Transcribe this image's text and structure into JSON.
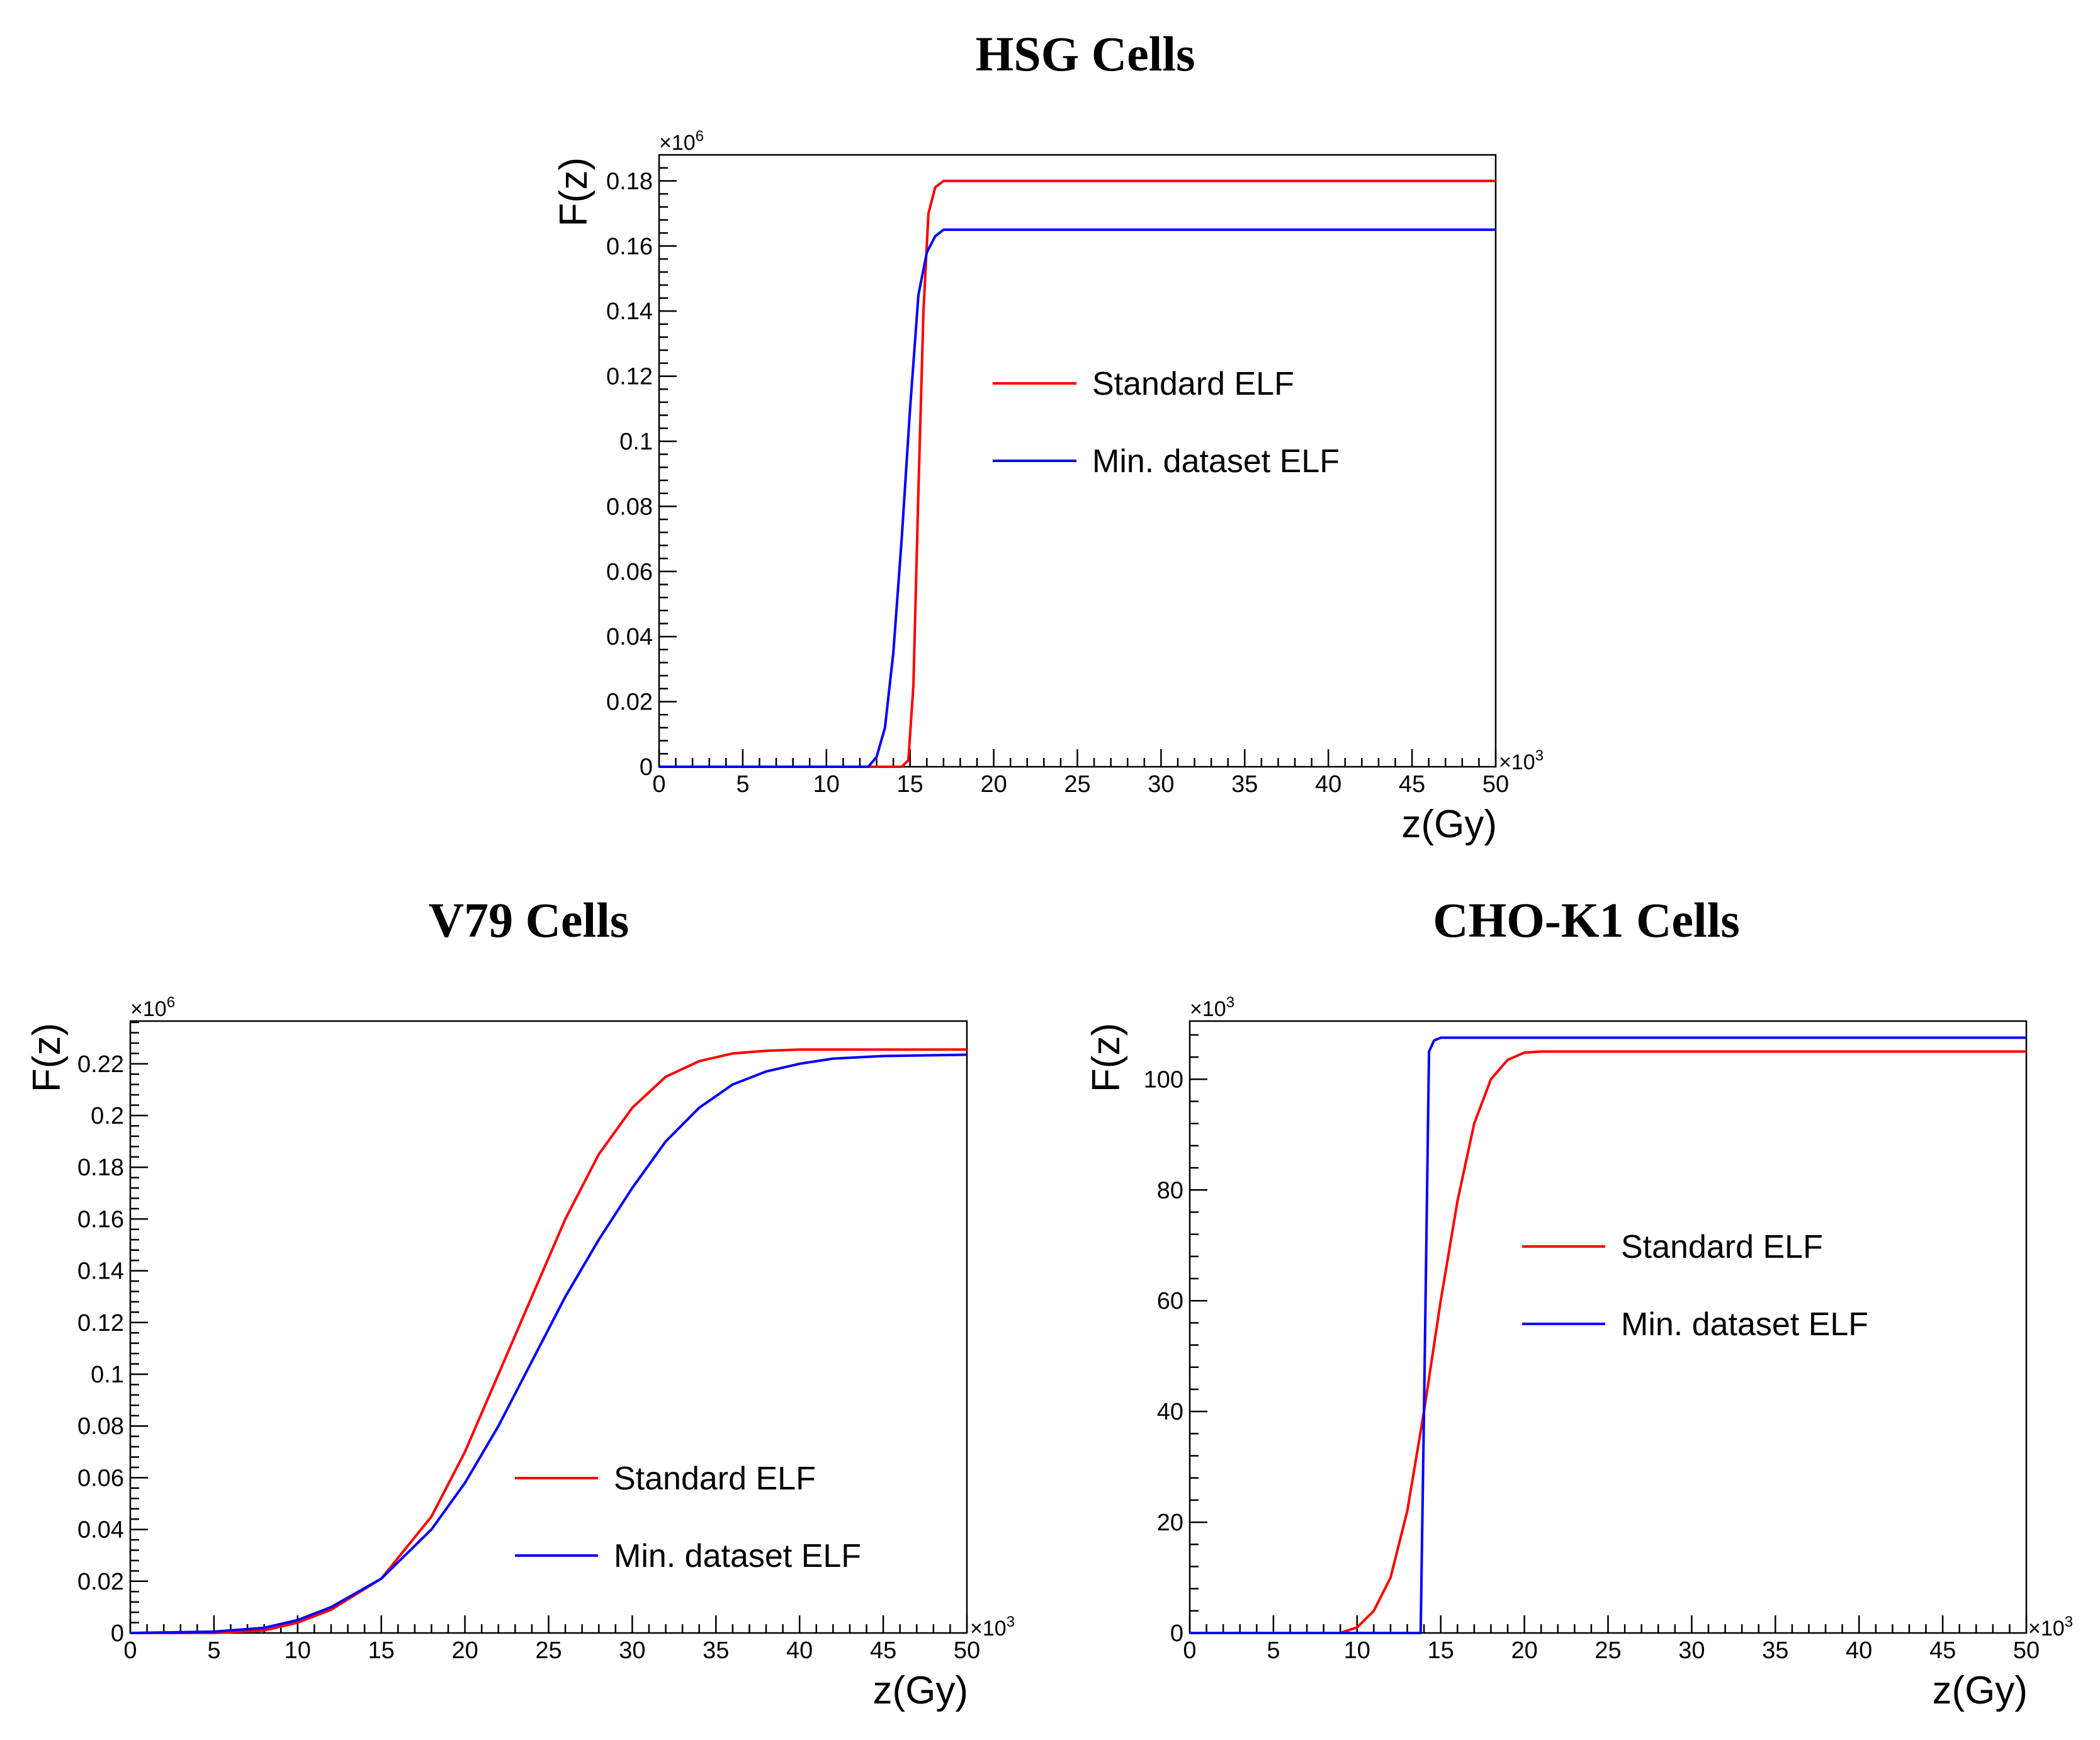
{
  "chart_data": [
    {
      "type": "line",
      "title": "HSG Cells",
      "xlabel": "z(Gy)",
      "ylabel": "F(z)",
      "x_multiplier": "×10",
      "x_multiplier_exp": "3",
      "y_multiplier": "×10",
      "y_multiplier_exp": "6",
      "xlim": [
        0,
        50
      ],
      "ylim": [
        0,
        0.188
      ],
      "x_ticks": [
        0,
        5,
        10,
        15,
        20,
        25,
        30,
        35,
        40,
        45,
        50
      ],
      "x_tick_labels": [
        "0",
        "5",
        "10",
        "15",
        "20",
        "25",
        "30",
        "35",
        "40",
        "45",
        "50"
      ],
      "y_ticks": [
        0,
        0.02,
        0.04,
        0.06,
        0.08,
        0.1,
        0.12,
        0.14,
        0.16,
        0.18
      ],
      "y_tick_labels": [
        "0",
        "0.02",
        "0.04",
        "0.06",
        "0.08",
        "0.1",
        "0.12",
        "0.14",
        "0.16",
        "0.18"
      ],
      "legend": [
        "Standard ELF",
        "Min. dataset ELF"
      ],
      "legend_position": "center-right",
      "series": [
        {
          "name": "Standard ELF",
          "color": "#ff0000",
          "x": [
            0,
            14.5,
            14.9,
            15.2,
            15.5,
            15.8,
            16.1,
            16.5,
            17,
            50
          ],
          "y": [
            0,
            0,
            0.002,
            0.025,
            0.085,
            0.14,
            0.17,
            0.178,
            0.18,
            0.18
          ]
        },
        {
          "name": "Min. dataset ELF",
          "color": "#0000ff",
          "x": [
            0,
            12.5,
            13,
            13.5,
            14,
            14.5,
            15,
            15.5,
            16,
            16.5,
            17,
            18,
            50
          ],
          "y": [
            0,
            0,
            0.003,
            0.012,
            0.035,
            0.07,
            0.11,
            0.145,
            0.158,
            0.163,
            0.165,
            0.165,
            0.165
          ]
        }
      ]
    },
    {
      "type": "line",
      "title": "V79 Cells",
      "xlabel": "z(Gy)",
      "ylabel": "F(z)",
      "x_multiplier": "×10",
      "x_multiplier_exp": "3",
      "y_multiplier": "×10",
      "y_multiplier_exp": "6",
      "xlim": [
        0,
        50
      ],
      "ylim": [
        0,
        0.2365
      ],
      "x_ticks": [
        0,
        5,
        10,
        15,
        20,
        25,
        30,
        35,
        40,
        45,
        50
      ],
      "x_tick_labels": [
        "0",
        "5",
        "10",
        "15",
        "20",
        "25",
        "30",
        "35",
        "40",
        "45",
        "50"
      ],
      "y_ticks": [
        0,
        0.02,
        0.04,
        0.06,
        0.08,
        0.1,
        0.12,
        0.14,
        0.16,
        0.18,
        0.2,
        0.22
      ],
      "y_tick_labels": [
        "0",
        "0.02",
        "0.04",
        "0.06",
        "0.08",
        "0.1",
        "0.12",
        "0.14",
        "0.16",
        "0.18",
        "0.2",
        "0.22"
      ],
      "legend": [
        "Standard ELF",
        "Min. dataset ELF"
      ],
      "legend_position": "bottom-right",
      "series": [
        {
          "name": "Standard ELF",
          "color": "#ff0000",
          "x": [
            0,
            5,
            8,
            10,
            12,
            15,
            18,
            20,
            22,
            24,
            26,
            28,
            30,
            32,
            34,
            36,
            38,
            40,
            50
          ],
          "y": [
            0,
            0,
            0.001,
            0.004,
            0.009,
            0.021,
            0.045,
            0.07,
            0.1,
            0.13,
            0.16,
            0.185,
            0.203,
            0.215,
            0.221,
            0.224,
            0.225,
            0.2255,
            0.2255
          ]
        },
        {
          "name": "Min. dataset ELF",
          "color": "#0000ff",
          "x": [
            0,
            5,
            8,
            10,
            12,
            15,
            18,
            20,
            22,
            24,
            26,
            28,
            30,
            32,
            34,
            36,
            38,
            40,
            42,
            45,
            50
          ],
          "y": [
            0,
            0.0005,
            0.002,
            0.005,
            0.01,
            0.021,
            0.04,
            0.058,
            0.08,
            0.105,
            0.13,
            0.152,
            0.172,
            0.19,
            0.203,
            0.212,
            0.217,
            0.22,
            0.222,
            0.223,
            0.2235
          ]
        }
      ]
    },
    {
      "type": "line",
      "title": "CHO-K1 Cells",
      "xlabel": "z(Gy)",
      "ylabel": "F(z)",
      "x_multiplier": "×10",
      "x_multiplier_exp": "3",
      "y_multiplier": "×10",
      "y_multiplier_exp": "3",
      "xlim": [
        0,
        50
      ],
      "ylim": [
        0,
        110.5
      ],
      "x_ticks": [
        0,
        5,
        10,
        15,
        20,
        25,
        30,
        35,
        40,
        45,
        50
      ],
      "x_tick_labels": [
        "0",
        "5",
        "10",
        "15",
        "20",
        "25",
        "30",
        "35",
        "40",
        "45",
        "50"
      ],
      "y_ticks": [
        0,
        20,
        40,
        60,
        80,
        100
      ],
      "y_tick_labels": [
        "0",
        "20",
        "40",
        "60",
        "80",
        "100"
      ],
      "legend": [
        "Standard ELF",
        "Min. dataset ELF"
      ],
      "legend_position": "center-right",
      "series": [
        {
          "name": "Standard ELF",
          "color": "#ff0000",
          "x": [
            0,
            9,
            10,
            11,
            12,
            13,
            14,
            15,
            16,
            17,
            18,
            19,
            20,
            21,
            50
          ],
          "y": [
            0,
            0,
            1,
            4,
            10,
            22,
            40,
            60,
            78,
            92,
            100,
            103.5,
            104.8,
            105,
            105
          ]
        },
        {
          "name": "Min. dataset ELF",
          "color": "#0000ff",
          "x": [
            0,
            13.8,
            14,
            14.3,
            14.6,
            15,
            50
          ],
          "y": [
            0,
            0,
            40,
            105,
            107,
            107.5,
            107.5
          ]
        }
      ]
    }
  ]
}
